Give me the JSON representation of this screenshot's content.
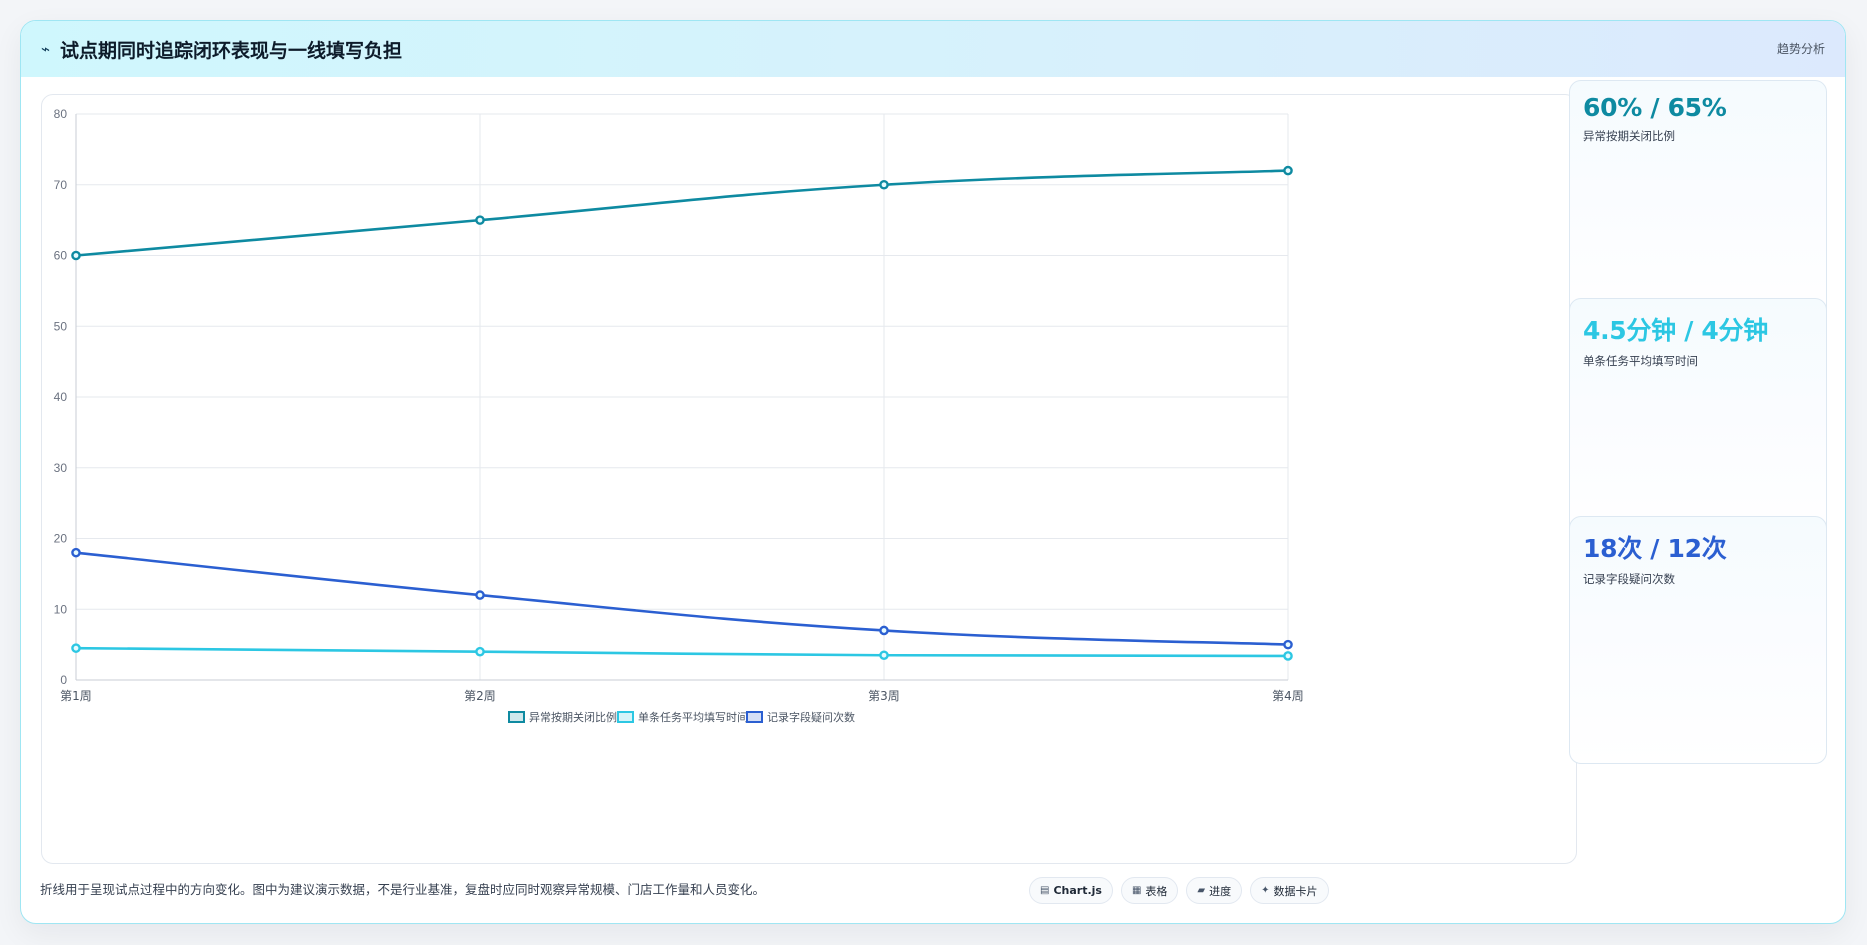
{
  "header": {
    "title": "试点期同时追踪闭环表现与一线填写负担",
    "icon": "trend-icon",
    "tag": "趋势分析"
  },
  "kpis": [
    {
      "value": "60% / 65%",
      "label": "异常按期关闭比例",
      "color": "#0e8aa1"
    },
    {
      "value": "4.5分钟 / 4分钟",
      "label": "单条任务平均填写时间",
      "color": "#2cc7e3"
    },
    {
      "value": "18次 / 12次",
      "label": "记录字段疑问次数",
      "color": "#2b5fd1"
    }
  ],
  "footer": {
    "note": "折线用于呈现试点过程中的方向变化。图中为建议演示数据，不是行业基准，复盘时应同时观察异常规模、门店工作量和人员变化。",
    "tags": [
      {
        "icon": "chart-icon",
        "glyph": "▤",
        "label": "Chart.js"
      },
      {
        "icon": "table-icon",
        "glyph": "▦",
        "label": "表格"
      },
      {
        "icon": "progress-icon",
        "glyph": "▰",
        "label": "进度"
      },
      {
        "icon": "card-icon",
        "glyph": "✦",
        "label": "数据卡片"
      }
    ]
  },
  "chart_data": {
    "type": "line",
    "x": [
      "第1周",
      "第2周",
      "第3周",
      "第4周"
    ],
    "ylim": [
      0,
      80
    ],
    "yticks": [
      0,
      10,
      20,
      30,
      40,
      50,
      60,
      70,
      80
    ],
    "grid": true,
    "legend_position": "bottom",
    "series": [
      {
        "name": "异常按期关闭比例",
        "values": [
          60,
          65,
          70,
          72
        ],
        "color": "#0e8aa1"
      },
      {
        "name": "单条任务平均填写时间",
        "values": [
          4.5,
          4,
          3.5,
          3.4
        ],
        "color": "#2cc7e3"
      },
      {
        "name": "记录字段疑问次数",
        "values": [
          18,
          12,
          7,
          5
        ],
        "color": "#2b5fd1"
      }
    ]
  }
}
